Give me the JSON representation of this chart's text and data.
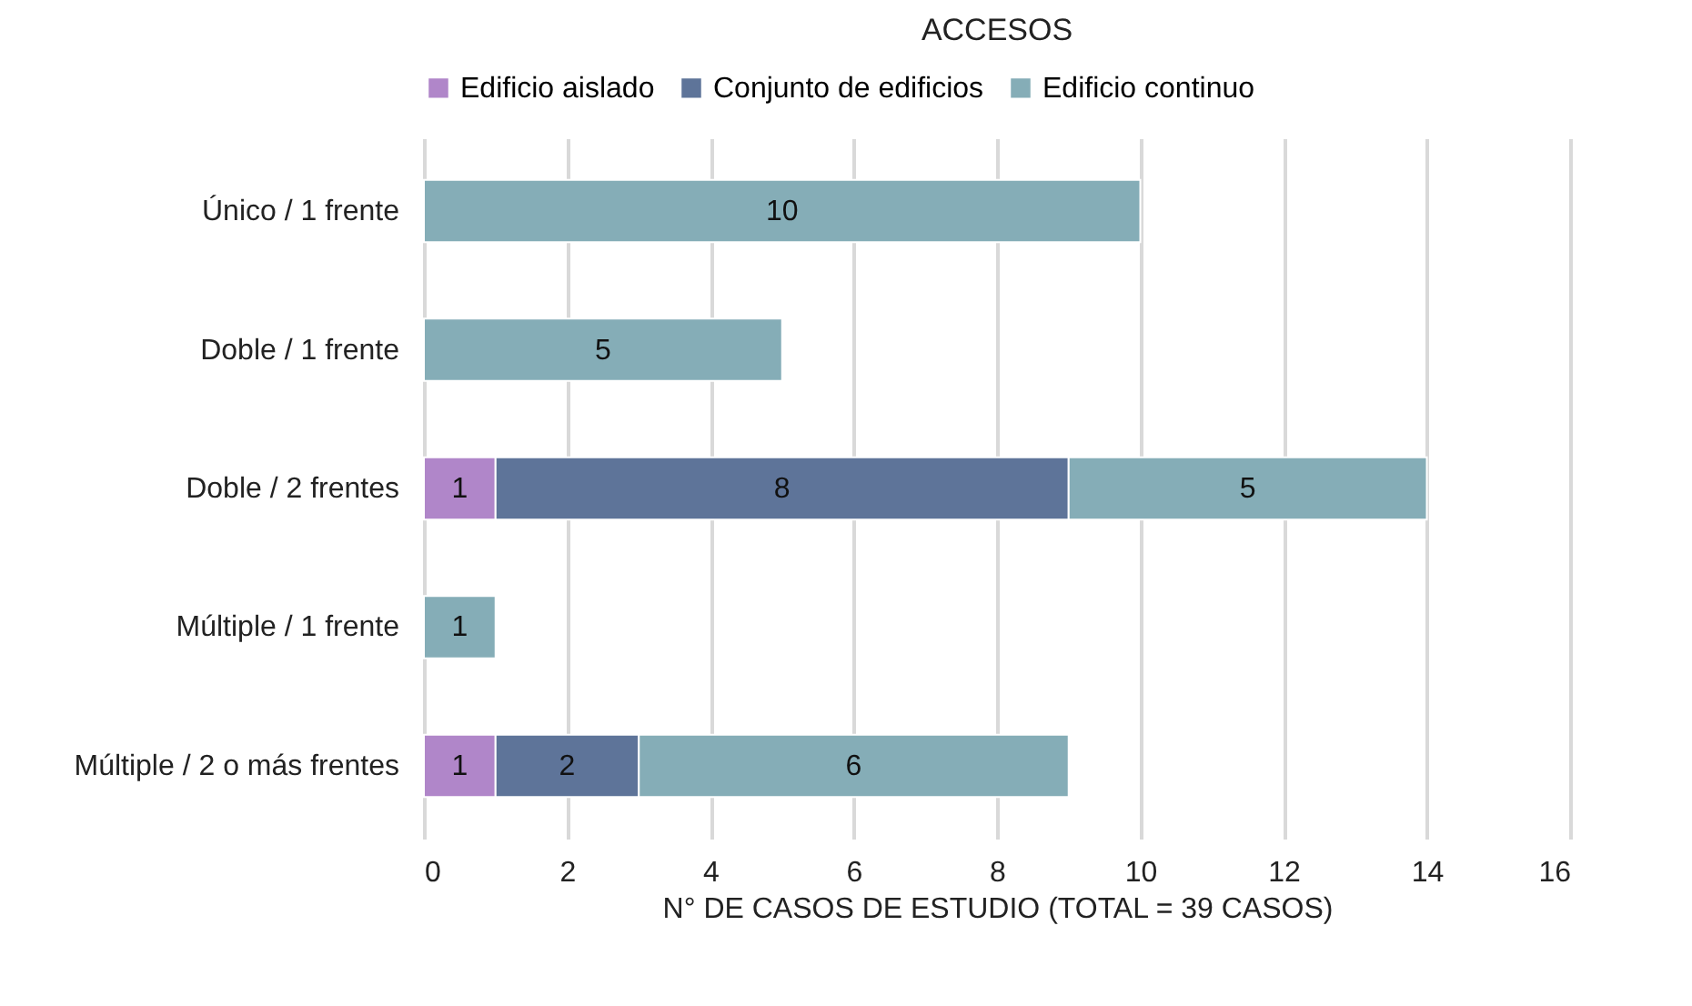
{
  "chart_data": {
    "type": "bar",
    "orientation": "horizontal",
    "stacked": true,
    "title": "ACCESOS",
    "xlabel": "N° DE CASOS DE ESTUDIO (TOTAL = 39 CASOS)",
    "categories": [
      "Único / 1 frente",
      "Doble / 1 frente",
      "Doble / 2 frentes",
      "Múltiple / 1 frente",
      "Múltiple / 2 o más frentes"
    ],
    "series": [
      {
        "name": "Edificio aislado",
        "color": "#b086c9",
        "values": [
          null,
          null,
          1,
          null,
          1
        ]
      },
      {
        "name": "Conjunto de edificios",
        "color": "#5e7499",
        "values": [
          null,
          null,
          8,
          null,
          2
        ]
      },
      {
        "name": "Edificio continuo",
        "color": "#85adb7",
        "values": [
          10,
          5,
          5,
          1,
          6
        ]
      }
    ],
    "xlim": [
      0,
      16
    ],
    "xticks": [
      0,
      2,
      4,
      6,
      8,
      10,
      12,
      14,
      16
    ],
    "grid": "x",
    "legend": "top",
    "data_labels": true
  }
}
